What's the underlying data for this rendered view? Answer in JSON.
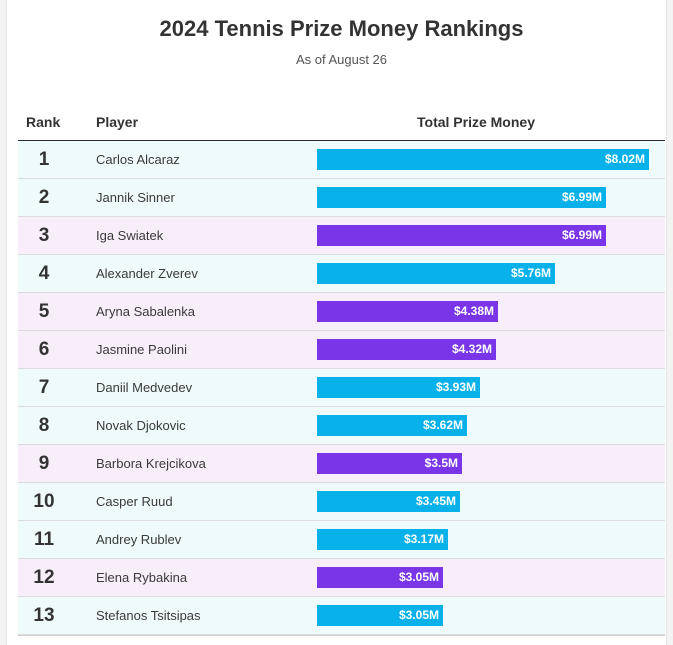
{
  "title": "2024 Tennis Prize Money Rankings",
  "subtitle": "As of August 26",
  "columns": {
    "rank": "Rank",
    "player": "Player",
    "money": "Total Prize Money"
  },
  "colors": {
    "men_bar": "#08b1e9",
    "women_bar": "#7b35e8",
    "men_row_bg": "#effbfb",
    "women_row_bg": "#f8eefa"
  },
  "chart_data": {
    "type": "bar",
    "orientation": "horizontal",
    "title": "2024 Tennis Prize Money Rankings",
    "subtitle": "As of August 26",
    "unit": "$M",
    "xlim": [
      0,
      8.02
    ],
    "rows": [
      {
        "rank": "1",
        "player": "Carlos Alcaraz",
        "value": 8.02,
        "label": "$8.02M",
        "group": "men"
      },
      {
        "rank": "2",
        "player": "Jannik Sinner",
        "value": 6.99,
        "label": "$6.99M",
        "group": "men"
      },
      {
        "rank": "3",
        "player": "Iga Swiatek",
        "value": 6.99,
        "label": "$6.99M",
        "group": "women"
      },
      {
        "rank": "4",
        "player": "Alexander Zverev",
        "value": 5.76,
        "label": "$5.76M",
        "group": "men"
      },
      {
        "rank": "5",
        "player": "Aryna Sabalenka",
        "value": 4.38,
        "label": "$4.38M",
        "group": "women"
      },
      {
        "rank": "6",
        "player": "Jasmine Paolini",
        "value": 4.32,
        "label": "$4.32M",
        "group": "women"
      },
      {
        "rank": "7",
        "player": "Daniil Medvedev",
        "value": 3.93,
        "label": "$3.93M",
        "group": "men"
      },
      {
        "rank": "8",
        "player": "Novak Djokovic",
        "value": 3.62,
        "label": "$3.62M",
        "group": "men"
      },
      {
        "rank": "9",
        "player": "Barbora Krejcikova",
        "value": 3.5,
        "label": "$3.5M",
        "group": "women"
      },
      {
        "rank": "10",
        "player": "Casper Ruud",
        "value": 3.45,
        "label": "$3.45M",
        "group": "men"
      },
      {
        "rank": "11",
        "player": "Andrey Rublev",
        "value": 3.17,
        "label": "$3.17M",
        "group": "men"
      },
      {
        "rank": "12",
        "player": "Elena Rybakina",
        "value": 3.05,
        "label": "$3.05M",
        "group": "women"
      },
      {
        "rank": "13",
        "player": "Stefanos Tsitsipas",
        "value": 3.05,
        "label": "$3.05M",
        "group": "men"
      }
    ]
  }
}
